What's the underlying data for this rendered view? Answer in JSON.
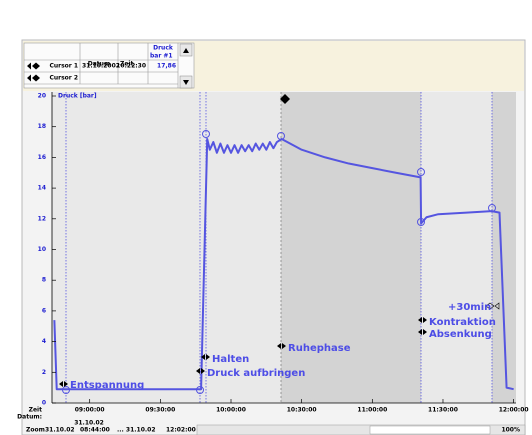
{
  "table": {
    "columns": [
      "Datum",
      "Zeit",
      "Druck",
      "bar #1"
    ],
    "rows": [
      [
        "Cursor 1",
        "31.10.2002",
        "10:22:30",
        "17,86"
      ],
      [
        "Cursor 2"
      ]
    ]
  },
  "chart_data": {
    "type": "line",
    "y_label": "Druck [bar]",
    "x_label": "Zeit",
    "date_label": "Datum:",
    "date": "31.10.02",
    "xlim": [
      524,
      721
    ],
    "ylim": [
      0,
      20
    ],
    "xticks": [
      {
        "value": 540,
        "label": "09:00:00"
      },
      {
        "value": 570,
        "label": "09:30:00"
      },
      {
        "value": 600,
        "label": "10:00:00"
      },
      {
        "value": 630,
        "label": "10:30:00"
      },
      {
        "value": 660,
        "label": "11:00:00"
      },
      {
        "value": 690,
        "label": "11:30:00"
      },
      {
        "value": 720,
        "label": "12:00:00"
      }
    ],
    "yticks": [
      0,
      2,
      4,
      6,
      8,
      10,
      12,
      14,
      16,
      18,
      20
    ],
    "series": [
      {
        "name": "Druck",
        "color": "#5555e0",
        "x": [
          525,
          526,
          587.3,
          589.9,
          591,
          592.5,
          594,
          595.5,
          597,
          598.5,
          600,
          601.5,
          603,
          604.5,
          606,
          607.5,
          609,
          610.5,
          612,
          613.5,
          615,
          616.5,
          618,
          619.5,
          621.5,
          630,
          640,
          650,
          660,
          670,
          680.5,
          680.7,
          683,
          688,
          700,
          710.7,
          714,
          717,
          720
        ],
        "values": [
          5.4,
          0.9,
          0.9,
          17.2,
          16.5,
          17.0,
          16.3,
          16.9,
          16.3,
          16.8,
          16.3,
          16.8,
          16.3,
          16.8,
          16.4,
          16.8,
          16.4,
          16.9,
          16.5,
          16.9,
          16.5,
          17.0,
          16.6,
          17.0,
          17.2,
          16.5,
          16.0,
          15.6,
          15.3,
          15.0,
          14.7,
          11.7,
          12.1,
          12.3,
          12.4,
          12.5,
          12.4,
          1.0,
          0.9
        ]
      }
    ],
    "annotations": [
      "Entspannung",
      "Halten",
      "Druck aufbringen",
      "Ruhephase",
      "+30min",
      "Kontraktion",
      "Absenkung"
    ]
  },
  "footer": {
    "zoom_label": "Zoom",
    "start_date": "31.10.02",
    "start_time": "08:44:00",
    "end_date": "... 31.10.02",
    "end_time": "12:02:00",
    "zoom_percent": "100%"
  }
}
